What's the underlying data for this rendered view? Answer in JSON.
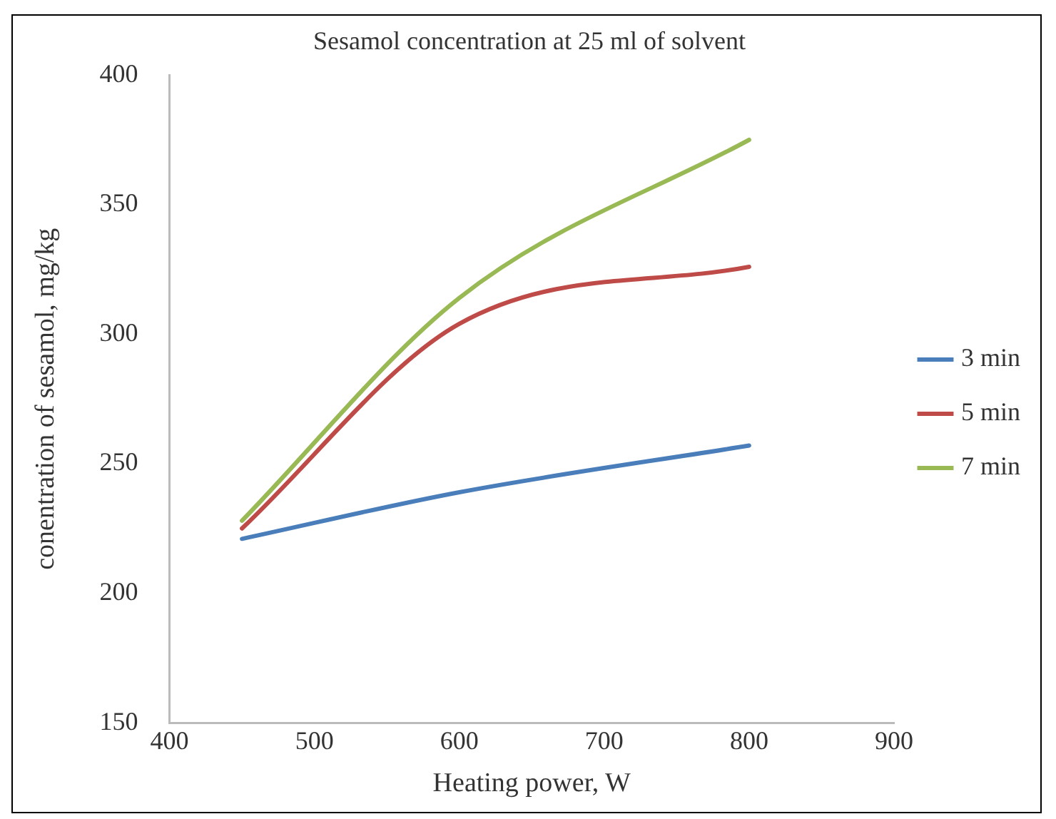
{
  "chart_data": {
    "type": "line",
    "title": "Sesamol concentration at 25 ml of solvent",
    "xlabel": "Heating power, W",
    "ylabel": "conentration of sesamol, mg/kg",
    "x": [
      450,
      600,
      800
    ],
    "series": [
      {
        "name": "3 min",
        "color": "#4a7ebb",
        "values": [
          221,
          239,
          257
        ]
      },
      {
        "name": "5 min",
        "color": "#be4b48",
        "values": [
          225,
          304,
          326
        ]
      },
      {
        "name": "7 min",
        "color": "#98b954",
        "values": [
          228,
          314,
          375
        ]
      }
    ],
    "xlim": [
      400,
      900
    ],
    "xticks": [
      400,
      500,
      600,
      700,
      800,
      900
    ],
    "ylim": [
      150,
      400
    ],
    "yticks": [
      150,
      200,
      250,
      300,
      350,
      400
    ],
    "grid": false,
    "legend": "right",
    "marker": "none",
    "line_style": "solid"
  }
}
